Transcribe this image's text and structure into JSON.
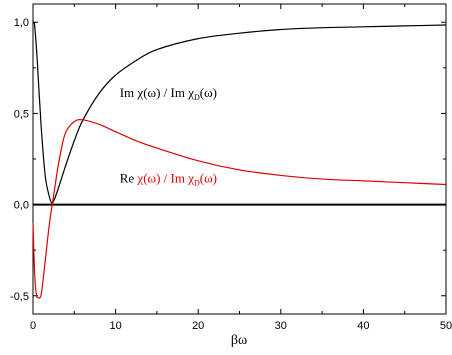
{
  "chart_data": {
    "type": "line",
    "xlabel": "βω",
    "ylabel": "",
    "xlim": [
      0,
      50
    ],
    "ylim": [
      -0.6,
      1.1
    ],
    "x_ticks": [
      0,
      10,
      20,
      30,
      40,
      50
    ],
    "x_tick_labels": [
      "0",
      "10",
      "20",
      "30",
      "40",
      "50"
    ],
    "y_ticks": [
      -0.5,
      0.0,
      0.5,
      1.0
    ],
    "y_tick_labels": [
      "-0,5",
      "0,0",
      "0,5",
      "1,0"
    ],
    "grid": false,
    "reference_line": {
      "y": 0.0,
      "color": "#000000"
    },
    "series": [
      {
        "color": "#000000",
        "x": [
          0,
          0.2,
          0.5,
          1.0,
          1.5,
          2.0,
          2.25,
          2.5,
          3.0,
          4.0,
          5.0,
          6.0,
          8.0,
          10.0,
          12.5,
          15.0,
          20.0,
          25.0,
          30.0,
          35.0,
          40.0,
          45.0,
          50.0
        ],
        "y": [
          1.0,
          0.98,
          0.8,
          0.42,
          0.15,
          0.04,
          0.01,
          0.02,
          0.08,
          0.22,
          0.35,
          0.46,
          0.61,
          0.71,
          0.79,
          0.85,
          0.91,
          0.94,
          0.96,
          0.97,
          0.975,
          0.98,
          0.985
        ]
      },
      {
        "color": "#e00000",
        "x": [
          0,
          0.2,
          0.4,
          0.6,
          1.0,
          1.5,
          2.0,
          2.5,
          3.0,
          3.5,
          4.0,
          5.0,
          6.0,
          8.0,
          10.0,
          12.5,
          15.0,
          20.0,
          25.0,
          30.0,
          35.0,
          40.0,
          45.0,
          50.0
        ],
        "y": [
          -0.1,
          -0.38,
          -0.49,
          -0.51,
          -0.49,
          -0.3,
          -0.1,
          0.05,
          0.2,
          0.32,
          0.4,
          0.455,
          0.465,
          0.44,
          0.4,
          0.35,
          0.31,
          0.24,
          0.19,
          0.16,
          0.14,
          0.13,
          0.12,
          0.11
        ]
      }
    ],
    "annotations": [
      {
        "color": "#000000",
        "prefix": "Im ",
        "main": "χ(ω) / Im χ",
        "sub": "D",
        "tail": "(ω)",
        "at": [
          10.5,
          0.59
        ]
      },
      {
        "color": "#e00000",
        "prefix": "Re ",
        "main": "χ(ω) / Im χ",
        "sub": "D",
        "tail": "(ω)",
        "at": [
          10.5,
          0.12
        ]
      }
    ]
  }
}
